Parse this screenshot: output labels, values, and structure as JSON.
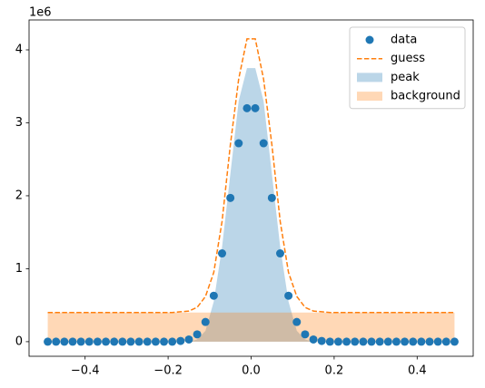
{
  "chart_data": {
    "type": "line",
    "y_offset_label": "1e6",
    "x": [
      -0.49,
      -0.47,
      -0.45,
      -0.43,
      -0.41,
      -0.39,
      -0.37,
      -0.35,
      -0.33,
      -0.31,
      -0.29,
      -0.27,
      -0.25,
      -0.23,
      -0.21,
      -0.19,
      -0.17,
      -0.15,
      -0.13,
      -0.11,
      -0.09,
      -0.07,
      -0.05,
      -0.03,
      -0.01,
      0.01,
      0.03,
      0.05,
      0.07,
      0.09,
      0.11,
      0.13,
      0.15,
      0.17,
      0.19,
      0.21,
      0.23,
      0.25,
      0.27,
      0.29,
      0.31,
      0.33,
      0.35,
      0.37,
      0.39,
      0.41,
      0.43,
      0.45,
      0.47,
      0.49
    ],
    "series": [
      {
        "name": "data",
        "kind": "scatter",
        "color": "#1f77b4",
        "values": [
          0,
          0,
          0,
          0,
          0,
          0,
          0,
          0,
          0,
          0,
          0,
          0,
          0,
          0,
          0,
          0,
          0.01,
          0.03,
          0.1,
          0.27,
          0.63,
          1.21,
          1.97,
          2.72,
          3.2,
          3.2,
          2.72,
          1.97,
          1.21,
          0.63,
          0.27,
          0.1,
          0.03,
          0.01,
          0,
          0,
          0,
          0,
          0,
          0,
          0,
          0,
          0,
          0,
          0,
          0,
          0,
          0,
          0,
          0
        ]
      },
      {
        "name": "guess",
        "kind": "dashed",
        "color": "#ff7f0e",
        "values": [
          0.4,
          0.4,
          0.4,
          0.4,
          0.4,
          0.4,
          0.4,
          0.4,
          0.4,
          0.4,
          0.4,
          0.4,
          0.4,
          0.4,
          0.4,
          0.4,
          0.41,
          0.42,
          0.47,
          0.62,
          0.95,
          1.65,
          2.7,
          3.6,
          4.15,
          4.15,
          3.6,
          2.7,
          1.65,
          0.95,
          0.62,
          0.47,
          0.42,
          0.41,
          0.4,
          0.4,
          0.4,
          0.4,
          0.4,
          0.4,
          0.4,
          0.4,
          0.4,
          0.4,
          0.4,
          0.4,
          0.4,
          0.4,
          0.4,
          0.4
        ]
      },
      {
        "name": "peak",
        "kind": "area",
        "color": "#1f77b4",
        "values": [
          0,
          0,
          0,
          0,
          0,
          0,
          0,
          0,
          0,
          0,
          0,
          0,
          0,
          0,
          0,
          0,
          0,
          0,
          0.03,
          0.15,
          0.55,
          1.3,
          2.3,
          3.3,
          3.75,
          3.75,
          3.3,
          2.3,
          1.3,
          0.55,
          0.15,
          0.03,
          0,
          0,
          0,
          0,
          0,
          0,
          0,
          0,
          0,
          0,
          0,
          0,
          0,
          0,
          0,
          0,
          0,
          0
        ]
      },
      {
        "name": "background",
        "kind": "area",
        "color": "#ff7f0e",
        "values": [
          0.4,
          0.4,
          0.4,
          0.4,
          0.4,
          0.4,
          0.4,
          0.4,
          0.4,
          0.4,
          0.4,
          0.4,
          0.4,
          0.4,
          0.4,
          0.4,
          0.4,
          0.4,
          0.4,
          0.4,
          0.4,
          0.4,
          0.4,
          0.4,
          0.4,
          0.4,
          0.4,
          0.4,
          0.4,
          0.4,
          0.4,
          0.4,
          0.4,
          0.4,
          0.4,
          0.4,
          0.4,
          0.4,
          0.4,
          0.4,
          0.4,
          0.4,
          0.4,
          0.4,
          0.4,
          0.4,
          0.4,
          0.4,
          0.4,
          0.4
        ]
      }
    ],
    "xlim": [
      -0.535,
      0.535
    ],
    "ylim": [
      -0.2,
      4.41
    ],
    "xticks": [
      {
        "value": -0.4,
        "label": "−0.4"
      },
      {
        "value": -0.2,
        "label": "−0.2"
      },
      {
        "value": 0,
        "label": "0.0"
      },
      0.2,
      0.4
    ],
    "yticks": [
      0,
      1,
      2,
      3,
      4
    ],
    "legend": "upper right"
  }
}
